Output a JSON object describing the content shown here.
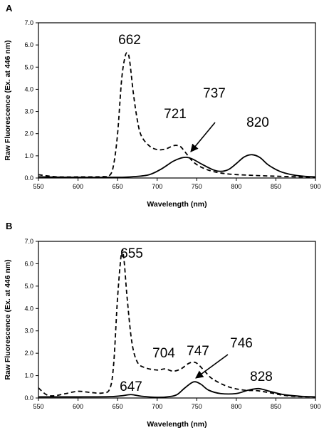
{
  "chart_data": [
    {
      "type": "line",
      "panel_label": "A",
      "xlabel": "Wavelength (nm)",
      "ylabel": "Raw Fluorescence (Ex. at 446 nm)",
      "xlim": [
        550,
        900
      ],
      "ylim": [
        0,
        7
      ],
      "x_ticks": [
        550,
        600,
        650,
        700,
        750,
        800,
        850,
        900
      ],
      "y_ticks": [
        "0.0",
        "1.0",
        "2.0",
        "3.0",
        "4.0",
        "5.0",
        "6.0",
        "7.0"
      ],
      "grid": false,
      "series": [
        {
          "style": "dashed",
          "points": [
            [
              550,
              0.15
            ],
            [
              560,
              0.1
            ],
            [
              575,
              0.05
            ],
            [
              600,
              0.05
            ],
            [
              630,
              0.06
            ],
            [
              640,
              0.12
            ],
            [
              645,
              0.6
            ],
            [
              650,
              2.0
            ],
            [
              655,
              4.4
            ],
            [
              659,
              5.4
            ],
            [
              662,
              5.65
            ],
            [
              665,
              5.35
            ],
            [
              670,
              3.8
            ],
            [
              675,
              2.6
            ],
            [
              680,
              1.9
            ],
            [
              690,
              1.45
            ],
            [
              700,
              1.28
            ],
            [
              710,
              1.3
            ],
            [
              720,
              1.45
            ],
            [
              725,
              1.47
            ],
            [
              730,
              1.4
            ],
            [
              738,
              1.05
            ],
            [
              745,
              0.75
            ],
            [
              755,
              0.5
            ],
            [
              770,
              0.3
            ],
            [
              790,
              0.18
            ],
            [
              820,
              0.12
            ],
            [
              850,
              0.08
            ],
            [
              880,
              0.05
            ],
            [
              900,
              0.04
            ]
          ]
        },
        {
          "style": "solid",
          "points": [
            [
              550,
              0.05
            ],
            [
              600,
              0.03
            ],
            [
              650,
              0.03
            ],
            [
              670,
              0.06
            ],
            [
              690,
              0.15
            ],
            [
              705,
              0.4
            ],
            [
              720,
              0.75
            ],
            [
              730,
              0.9
            ],
            [
              737,
              0.93
            ],
            [
              745,
              0.85
            ],
            [
              755,
              0.65
            ],
            [
              770,
              0.38
            ],
            [
              780,
              0.3
            ],
            [
              790,
              0.38
            ],
            [
              800,
              0.65
            ],
            [
              810,
              0.95
            ],
            [
              820,
              1.05
            ],
            [
              830,
              0.92
            ],
            [
              840,
              0.6
            ],
            [
              855,
              0.3
            ],
            [
              870,
              0.15
            ],
            [
              885,
              0.08
            ],
            [
              900,
              0.05
            ]
          ]
        }
      ],
      "annotations": [
        "662",
        "721",
        "737",
        "820"
      ]
    },
    {
      "type": "line",
      "panel_label": "B",
      "xlabel": "Wavelength (nm)",
      "ylabel": "Raw Fluorescence (Ex. at 446 nm)",
      "xlim": [
        550,
        900
      ],
      "ylim": [
        0,
        7
      ],
      "x_ticks": [
        550,
        600,
        650,
        700,
        750,
        800,
        850,
        900
      ],
      "y_ticks": [
        "0.0",
        "1.0",
        "2.0",
        "3.0",
        "4.0",
        "5.0",
        "6.0",
        "7.0"
      ],
      "grid": false,
      "series": [
        {
          "style": "dashed",
          "points": [
            [
              550,
              0.45
            ],
            [
              560,
              0.15
            ],
            [
              570,
              0.1
            ],
            [
              585,
              0.2
            ],
            [
              600,
              0.3
            ],
            [
              615,
              0.25
            ],
            [
              630,
              0.22
            ],
            [
              640,
              0.4
            ],
            [
              645,
              1.5
            ],
            [
              650,
              4.5
            ],
            [
              655,
              6.5
            ],
            [
              658,
              6.2
            ],
            [
              662,
              4.5
            ],
            [
              668,
              2.5
            ],
            [
              675,
              1.6
            ],
            [
              685,
              1.35
            ],
            [
              700,
              1.25
            ],
            [
              710,
              1.3
            ],
            [
              720,
              1.2
            ],
            [
              730,
              1.3
            ],
            [
              740,
              1.55
            ],
            [
              747,
              1.6
            ],
            [
              752,
              1.5
            ],
            [
              760,
              1.2
            ],
            [
              770,
              0.85
            ],
            [
              790,
              0.5
            ],
            [
              810,
              0.35
            ],
            [
              825,
              0.33
            ],
            [
              840,
              0.25
            ],
            [
              860,
              0.12
            ],
            [
              880,
              0.06
            ],
            [
              900,
              0.05
            ]
          ]
        },
        {
          "style": "solid",
          "points": [
            [
              550,
              0.05
            ],
            [
              600,
              0.05
            ],
            [
              640,
              0.06
            ],
            [
              655,
              0.1
            ],
            [
              667,
              0.15
            ],
            [
              680,
              0.08
            ],
            [
              700,
              0.03
            ],
            [
              715,
              0.06
            ],
            [
              725,
              0.15
            ],
            [
              735,
              0.45
            ],
            [
              746,
              0.72
            ],
            [
              755,
              0.62
            ],
            [
              765,
              0.35
            ],
            [
              780,
              0.2
            ],
            [
              800,
              0.2
            ],
            [
              815,
              0.35
            ],
            [
              828,
              0.42
            ],
            [
              840,
              0.32
            ],
            [
              860,
              0.15
            ],
            [
              880,
              0.08
            ],
            [
              900,
              0.05
            ]
          ]
        }
      ],
      "annotations": [
        "655",
        "704",
        "747",
        "746",
        "647",
        "828"
      ]
    }
  ]
}
